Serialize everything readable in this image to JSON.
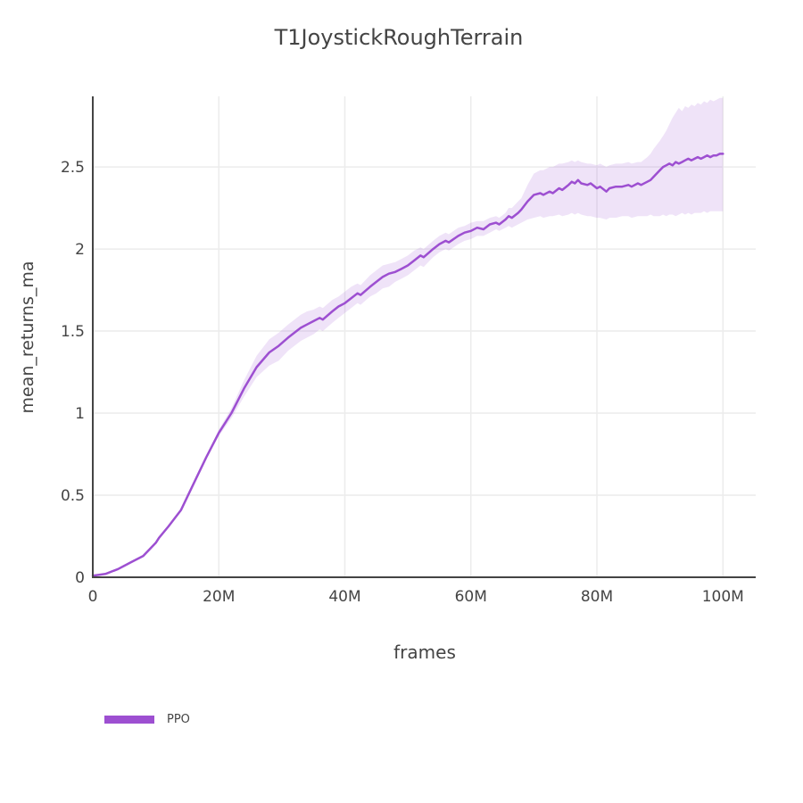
{
  "page": {
    "background": "#ffffff"
  },
  "chart_data": {
    "type": "line",
    "title": "T1JoystickRoughTerrain",
    "xlabel": "frames",
    "ylabel": "mean_returns_ma",
    "xlim": [
      0,
      105.2
    ],
    "ylim": [
      0,
      2.93
    ],
    "grid": true,
    "legend_position": "bottom-left",
    "colors": {
      "text": "#444444",
      "axis": "#444444",
      "grid": "#ececec",
      "background": "#ffffff"
    },
    "xticks": {
      "values": [
        0,
        20,
        40,
        60,
        80,
        100
      ],
      "labels": [
        "0",
        "20M",
        "40M",
        "60M",
        "80M",
        "100M"
      ]
    },
    "yticks": {
      "values": [
        0,
        0.5,
        1,
        1.5,
        2,
        2.5
      ],
      "labels": [
        "0",
        "0.5",
        "1",
        "1.5",
        "2",
        "2.5"
      ]
    },
    "legend": {
      "items": [
        {
          "label": "PPO",
          "color": "#9d4fd1"
        }
      ]
    },
    "series": [
      {
        "name": "PPO",
        "color": "#9d4fd1",
        "band_opacity": 0.16,
        "point_format": [
          "frames_millions",
          "mean",
          "band_lower",
          "band_upper"
        ],
        "points": [
          [
            0,
            0.01,
            0.01,
            0.01
          ],
          [
            2,
            0.02,
            0.02,
            0.02
          ],
          [
            4,
            0.05,
            0.05,
            0.05
          ],
          [
            6,
            0.09,
            0.09,
            0.09
          ],
          [
            8,
            0.13,
            0.13,
            0.13
          ],
          [
            10,
            0.21,
            0.21,
            0.21
          ],
          [
            10.5,
            0.24,
            0.24,
            0.24
          ],
          [
            12,
            0.31,
            0.31,
            0.31
          ],
          [
            14,
            0.41,
            0.41,
            0.41
          ],
          [
            16,
            0.57,
            0.56,
            0.58
          ],
          [
            18,
            0.73,
            0.72,
            0.74
          ],
          [
            20,
            0.88,
            0.86,
            0.9
          ],
          [
            22,
            1.0,
            0.97,
            1.03
          ],
          [
            24,
            1.15,
            1.1,
            1.2
          ],
          [
            26,
            1.28,
            1.22,
            1.35
          ],
          [
            28,
            1.37,
            1.29,
            1.45
          ],
          [
            29.5,
            1.41,
            1.32,
            1.49
          ],
          [
            31,
            1.46,
            1.38,
            1.54
          ],
          [
            32,
            1.49,
            1.41,
            1.57
          ],
          [
            33,
            1.52,
            1.44,
            1.6
          ],
          [
            34,
            1.54,
            1.46,
            1.62
          ],
          [
            35,
            1.56,
            1.48,
            1.63
          ],
          [
            36,
            1.58,
            1.51,
            1.65
          ],
          [
            36.5,
            1.57,
            1.5,
            1.64
          ],
          [
            38,
            1.62,
            1.55,
            1.69
          ],
          [
            39,
            1.65,
            1.58,
            1.71
          ],
          [
            40,
            1.67,
            1.61,
            1.74
          ],
          [
            41,
            1.7,
            1.64,
            1.77
          ],
          [
            42,
            1.73,
            1.67,
            1.79
          ],
          [
            42.5,
            1.72,
            1.66,
            1.78
          ],
          [
            44,
            1.77,
            1.71,
            1.84
          ],
          [
            45,
            1.8,
            1.73,
            1.87
          ],
          [
            46,
            1.83,
            1.76,
            1.9
          ],
          [
            47,
            1.85,
            1.77,
            1.91
          ],
          [
            48,
            1.86,
            1.8,
            1.92
          ],
          [
            49,
            1.88,
            1.82,
            1.94
          ],
          [
            50,
            1.9,
            1.84,
            1.96
          ],
          [
            51,
            1.93,
            1.87,
            1.99
          ],
          [
            52,
            1.96,
            1.9,
            2.01
          ],
          [
            52.5,
            1.95,
            1.89,
            2.0
          ],
          [
            54,
            2.0,
            1.95,
            2.05
          ],
          [
            55,
            2.03,
            1.98,
            2.08
          ],
          [
            56,
            2.05,
            2.0,
            2.1
          ],
          [
            56.5,
            2.04,
            1.99,
            2.09
          ],
          [
            58,
            2.08,
            2.03,
            2.13
          ],
          [
            59,
            2.1,
            2.05,
            2.14
          ],
          [
            60,
            2.11,
            2.06,
            2.16
          ],
          [
            61,
            2.13,
            2.08,
            2.17
          ],
          [
            62,
            2.12,
            2.08,
            2.17
          ],
          [
            63,
            2.15,
            2.1,
            2.19
          ],
          [
            64,
            2.16,
            2.12,
            2.2
          ],
          [
            64.5,
            2.15,
            2.11,
            2.19
          ],
          [
            65.5,
            2.18,
            2.13,
            2.22
          ],
          [
            66,
            2.2,
            2.14,
            2.25
          ],
          [
            66.5,
            2.19,
            2.13,
            2.25
          ],
          [
            67.5,
            2.22,
            2.15,
            2.29
          ],
          [
            68,
            2.24,
            2.16,
            2.31
          ],
          [
            69,
            2.29,
            2.18,
            2.39
          ],
          [
            70,
            2.33,
            2.19,
            2.46
          ],
          [
            71,
            2.34,
            2.2,
            2.48
          ],
          [
            71.5,
            2.33,
            2.19,
            2.48
          ],
          [
            72.5,
            2.35,
            2.2,
            2.5
          ],
          [
            73,
            2.34,
            2.2,
            2.5
          ],
          [
            74,
            2.37,
            2.21,
            2.52
          ],
          [
            74.5,
            2.36,
            2.2,
            2.52
          ],
          [
            75.5,
            2.39,
            2.21,
            2.53
          ],
          [
            76,
            2.41,
            2.22,
            2.54
          ],
          [
            76.5,
            2.4,
            2.21,
            2.53
          ],
          [
            77,
            2.42,
            2.22,
            2.54
          ],
          [
            77.5,
            2.4,
            2.21,
            2.53
          ],
          [
            78.5,
            2.39,
            2.2,
            2.52
          ],
          [
            79,
            2.4,
            2.2,
            2.52
          ],
          [
            80,
            2.37,
            2.19,
            2.51
          ],
          [
            80.5,
            2.38,
            2.19,
            2.52
          ],
          [
            81.5,
            2.35,
            2.18,
            2.5
          ],
          [
            82,
            2.37,
            2.19,
            2.51
          ],
          [
            83,
            2.38,
            2.19,
            2.52
          ],
          [
            84,
            2.38,
            2.2,
            2.52
          ],
          [
            85,
            2.39,
            2.2,
            2.53
          ],
          [
            85.5,
            2.38,
            2.19,
            2.52
          ],
          [
            86.5,
            2.4,
            2.2,
            2.53
          ],
          [
            87,
            2.39,
            2.2,
            2.53
          ],
          [
            88,
            2.41,
            2.2,
            2.56
          ],
          [
            88.5,
            2.42,
            2.21,
            2.58
          ],
          [
            89,
            2.44,
            2.2,
            2.61
          ],
          [
            90,
            2.48,
            2.2,
            2.66
          ],
          [
            90.5,
            2.5,
            2.21,
            2.69
          ],
          [
            91,
            2.51,
            2.2,
            2.72
          ],
          [
            91.5,
            2.52,
            2.21,
            2.76
          ],
          [
            92,
            2.51,
            2.21,
            2.8
          ],
          [
            92.5,
            2.53,
            2.2,
            2.83
          ],
          [
            93,
            2.52,
            2.21,
            2.86
          ],
          [
            93.5,
            2.53,
            2.22,
            2.84
          ],
          [
            94,
            2.54,
            2.21,
            2.87
          ],
          [
            94.5,
            2.55,
            2.22,
            2.86
          ],
          [
            95,
            2.54,
            2.21,
            2.88
          ],
          [
            95.5,
            2.55,
            2.22,
            2.87
          ],
          [
            96,
            2.56,
            2.22,
            2.89
          ],
          [
            96.5,
            2.55,
            2.22,
            2.88
          ],
          [
            97,
            2.56,
            2.23,
            2.9
          ],
          [
            97.5,
            2.57,
            2.22,
            2.89
          ],
          [
            98,
            2.56,
            2.23,
            2.91
          ],
          [
            98.5,
            2.57,
            2.23,
            2.9
          ],
          [
            99,
            2.57,
            2.23,
            2.91
          ],
          [
            99.5,
            2.58,
            2.23,
            2.92
          ],
          [
            100,
            2.58,
            2.23,
            2.92
          ]
        ]
      }
    ]
  }
}
